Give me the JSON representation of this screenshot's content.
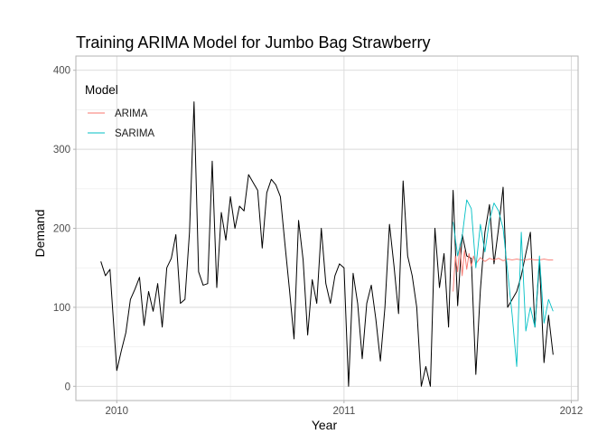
{
  "chart_data": {
    "type": "line",
    "title": "Training ARIMA Model for Jumbo Bag Strawberry",
    "xlabel": "Year",
    "ylabel": "Demand",
    "xlim": [
      2009.82,
      2012.03
    ],
    "ylim": [
      -18,
      418
    ],
    "xticks": [
      2010,
      2011,
      2012
    ],
    "xtick_labels": [
      "2010",
      "2011",
      "2012"
    ],
    "yticks": [
      0,
      100,
      200,
      300,
      400
    ],
    "ytick_labels": [
      "0",
      "100",
      "200",
      "300",
      "400"
    ],
    "grid": true,
    "legend": {
      "title": "Model",
      "placement": "top-left",
      "entries": [
        {
          "label": "ARIMA",
          "color": "#F8766D"
        },
        {
          "label": "SARIMA",
          "color": "#00BFC4"
        }
      ]
    },
    "series": [
      {
        "color": "#000000",
        "x": [
          2009.93,
          2009.95,
          2009.97,
          2010.0,
          2010.02,
          2010.04,
          2010.06,
          2010.08,
          2010.1,
          2010.12,
          2010.14,
          2010.16,
          2010.18,
          2010.2,
          2010.22,
          2010.24,
          2010.26,
          2010.28,
          2010.3,
          2010.32,
          2010.34,
          2010.36,
          2010.38,
          2010.4,
          2010.42,
          2010.44,
          2010.46,
          2010.48,
          2010.5,
          2010.52,
          2010.54,
          2010.56,
          2010.58,
          2010.6,
          2010.62,
          2010.64,
          2010.66,
          2010.68,
          2010.7,
          2010.72,
          2010.74,
          2010.76,
          2010.78,
          2010.8,
          2010.82,
          2010.84,
          2010.86,
          2010.88,
          2010.9,
          2010.92,
          2010.94,
          2010.96,
          2010.98,
          2011.0,
          2011.02,
          2011.04,
          2011.06,
          2011.08,
          2011.1,
          2011.12,
          2011.14,
          2011.16,
          2011.18,
          2011.2,
          2011.22,
          2011.24,
          2011.26,
          2011.28,
          2011.3,
          2011.32,
          2011.34,
          2011.36,
          2011.38,
          2011.4,
          2011.42,
          2011.44,
          2011.46,
          2011.48,
          2011.5,
          2011.52,
          2011.54,
          2011.56,
          2011.58,
          2011.6,
          2011.62,
          2011.64,
          2011.66,
          2011.68,
          2011.7,
          2011.72,
          2011.74,
          2011.76,
          2011.78,
          2011.8,
          2011.82,
          2011.84,
          2011.86,
          2011.88,
          2011.9,
          2011.92
        ],
        "values": [
          158,
          140,
          148,
          20,
          45,
          68,
          110,
          123,
          138,
          77,
          120,
          95,
          130,
          75,
          150,
          162,
          192,
          105,
          110,
          195,
          360,
          145,
          128,
          130,
          285,
          125,
          220,
          185,
          240,
          200,
          228,
          222,
          268,
          258,
          248,
          175,
          245,
          262,
          255,
          240,
          180,
          122,
          60,
          210,
          160,
          65,
          135,
          105,
          200,
          130,
          105,
          140,
          155,
          150,
          0,
          143,
          105,
          35,
          105,
          128,
          85,
          32,
          100,
          205,
          152,
          92,
          260,
          165,
          140,
          100,
          0,
          25,
          0,
          200,
          125,
          168,
          75,
          248,
          102,
          192,
          165,
          162,
          15,
          122,
          195,
          230,
          155,
          200,
          252,
          100,
          110,
          120,
          140,
          168,
          195,
          75,
          158,
          30,
          90,
          40
        ]
      },
      {
        "name": "ARIMA",
        "color": "#F8766D",
        "x": [
          2011.48,
          2011.49,
          2011.5,
          2011.51,
          2011.52,
          2011.53,
          2011.54,
          2011.55,
          2011.56,
          2011.57,
          2011.58,
          2011.6,
          2011.62,
          2011.64,
          2011.66,
          2011.68,
          2011.7,
          2011.72,
          2011.74,
          2011.76,
          2011.78,
          2011.8,
          2011.82,
          2011.84,
          2011.86,
          2011.88,
          2011.9,
          2011.92
        ],
        "values": [
          120,
          165,
          145,
          180,
          140,
          172,
          148,
          168,
          152,
          165,
          155,
          163,
          158,
          162,
          160,
          162,
          159,
          161,
          160,
          161,
          160,
          160,
          161,
          160,
          160,
          161,
          160,
          160
        ]
      },
      {
        "name": "SARIMA",
        "color": "#00BFC4",
        "x": [
          2011.48,
          2011.5,
          2011.52,
          2011.54,
          2011.56,
          2011.58,
          2011.6,
          2011.62,
          2011.64,
          2011.66,
          2011.68,
          2011.7,
          2011.72,
          2011.74,
          2011.76,
          2011.78,
          2011.8,
          2011.82,
          2011.84,
          2011.86,
          2011.88,
          2011.9,
          2011.92
        ],
        "values": [
          208,
          165,
          190,
          236,
          225,
          150,
          205,
          170,
          210,
          232,
          222,
          200,
          145,
          90,
          25,
          195,
          70,
          100,
          75,
          165,
          80,
          110,
          95
        ]
      }
    ]
  }
}
